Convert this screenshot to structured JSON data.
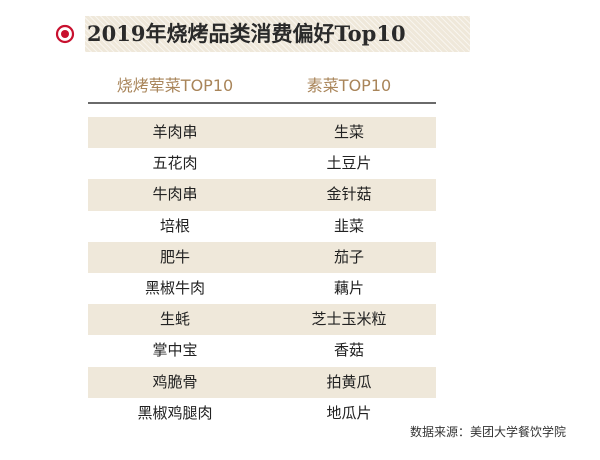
{
  "title": "2019年烧烤品类消费偏好Top10",
  "colors": {
    "accent_red": "#c8102e",
    "header_gold": "#a9855a",
    "row_shade": "#efe8da"
  },
  "icons": {
    "title_marker": "target-circle-icon"
  },
  "table": {
    "headers": [
      "烧烤荤菜TOP10",
      "素菜TOP10"
    ],
    "rows": [
      [
        "羊肉串",
        "生菜"
      ],
      [
        "五花肉",
        "土豆片"
      ],
      [
        "牛肉串",
        "金针菇"
      ],
      [
        "培根",
        "韭菜"
      ],
      [
        "肥牛",
        "茄子"
      ],
      [
        "黑椒牛肉",
        "藕片"
      ],
      [
        "生蚝",
        "芝士玉米粒"
      ],
      [
        "掌中宝",
        "香菇"
      ],
      [
        "鸡脆骨",
        "拍黄瓜"
      ],
      [
        "黑椒鸡腿肉",
        "地瓜片"
      ]
    ]
  },
  "source": "数据来源：美团大学餐饮学院"
}
